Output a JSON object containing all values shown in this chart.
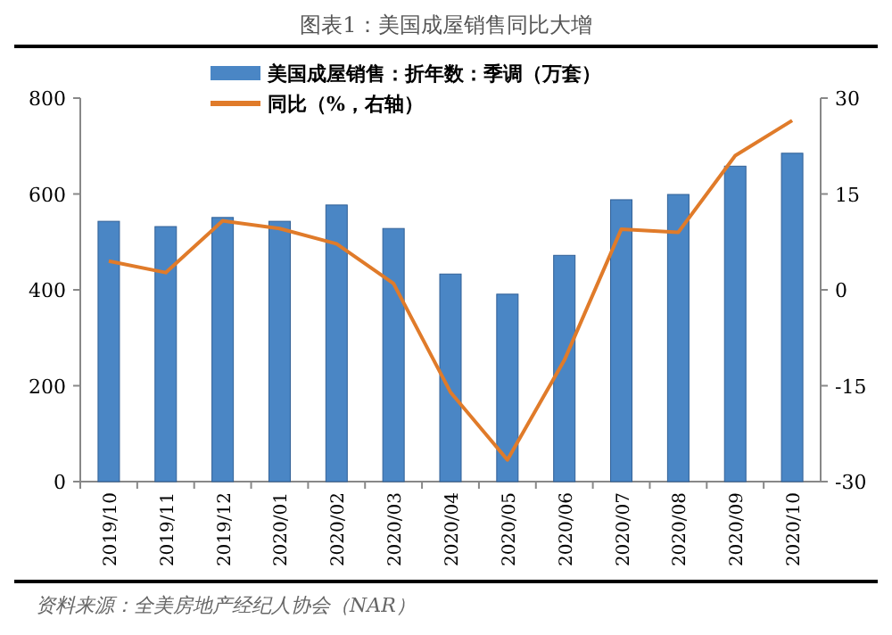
{
  "chart_data": {
    "type": "bar",
    "title": "图表1：美国成屋销售同比大增",
    "categories": [
      "2019/10",
      "2019/11",
      "2019/12",
      "2020/01",
      "2020/02",
      "2020/03",
      "2020/04",
      "2020/05",
      "2020/06",
      "2020/07",
      "2020/08",
      "2020/09",
      "2020/10"
    ],
    "series": [
      {
        "name": "美国成屋销售：折年数：季调（万套）",
        "color": "#4a86c5",
        "values": [
          543,
          532,
          551,
          543,
          577,
          528,
          433,
          391,
          472,
          588,
          599,
          658,
          685
        ]
      },
      {
        "name": "同比（%，右轴）",
        "type": "line",
        "axis": "y2",
        "color": "#e07b2a",
        "values": [
          4.5,
          2.7,
          10.8,
          9.6,
          7.2,
          1,
          -16,
          -26.6,
          -11,
          9.5,
          9,
          21,
          26.5
        ]
      }
    ],
    "ylim": [
      0,
      800
    ],
    "yticks": [
      0,
      200,
      400,
      600,
      800
    ],
    "y2lim": [
      -30,
      30
    ],
    "y2ticks": [
      -30,
      -15,
      0,
      15,
      30
    ],
    "legend": "top",
    "grid": false,
    "annotations": [
      "资料来源：全美房地产经纪人协会（NAR）"
    ]
  }
}
